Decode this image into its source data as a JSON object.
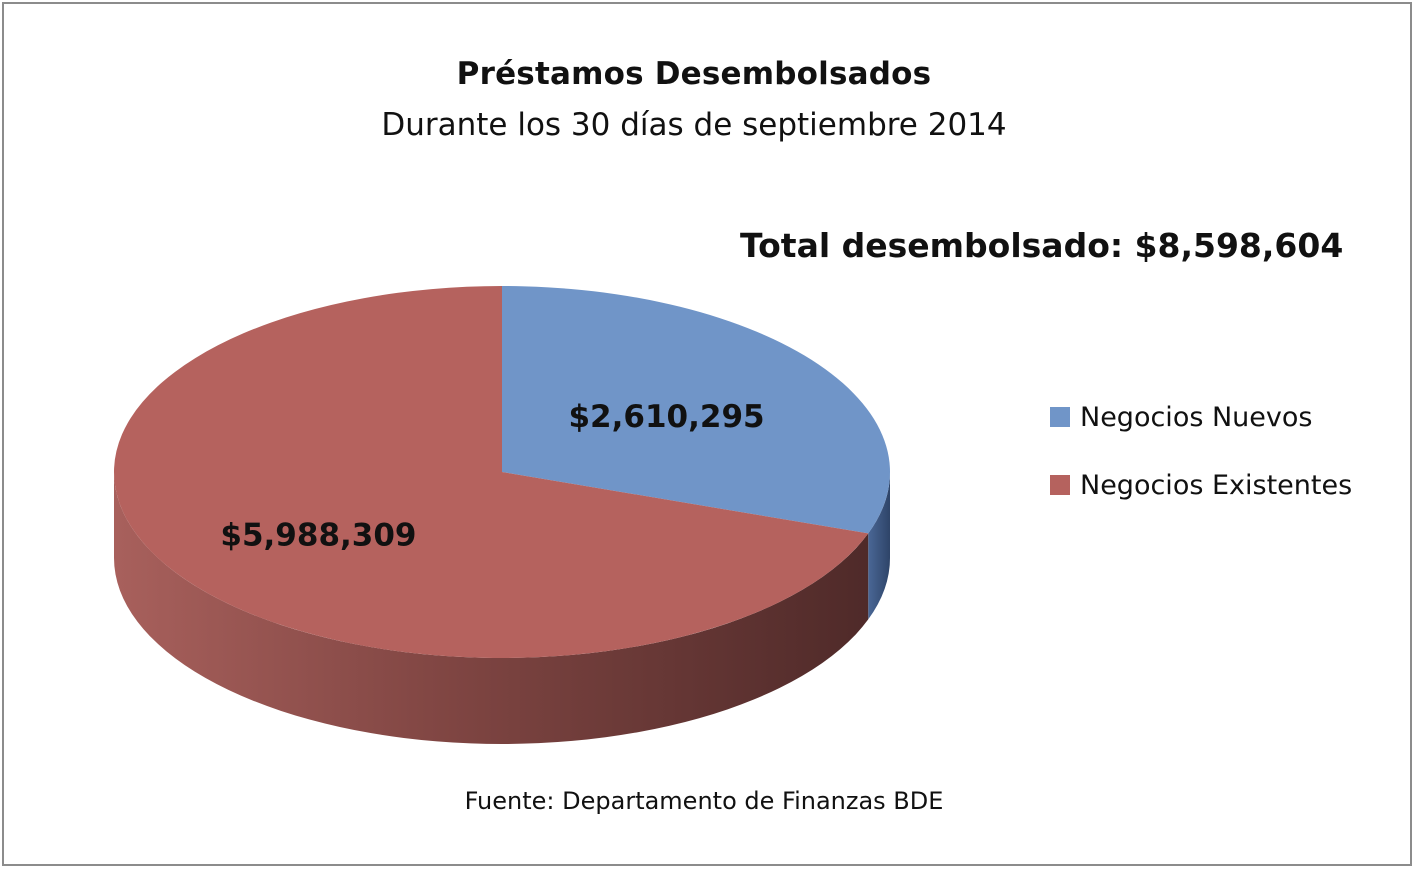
{
  "chart_data": {
    "type": "pie",
    "title": "Préstamos Desembolsados",
    "subtitle": "Durante los 30 días de septiembre 2014",
    "annotation": "Total desembolsado: $8,598,604",
    "source": "Fuente: Departamento de Finanzas BDE",
    "legend_position": "right",
    "slices": [
      {
        "name": "Negocios Nuevos",
        "value": 2610295,
        "label": "$2,610,295",
        "color": "#7095c8",
        "side_color": "#3f5c86"
      },
      {
        "name": "Negocios Existentes",
        "value": 5988309,
        "label": "$5,988,309",
        "color": "#b5625e",
        "side_color": "#85403d"
      }
    ]
  }
}
